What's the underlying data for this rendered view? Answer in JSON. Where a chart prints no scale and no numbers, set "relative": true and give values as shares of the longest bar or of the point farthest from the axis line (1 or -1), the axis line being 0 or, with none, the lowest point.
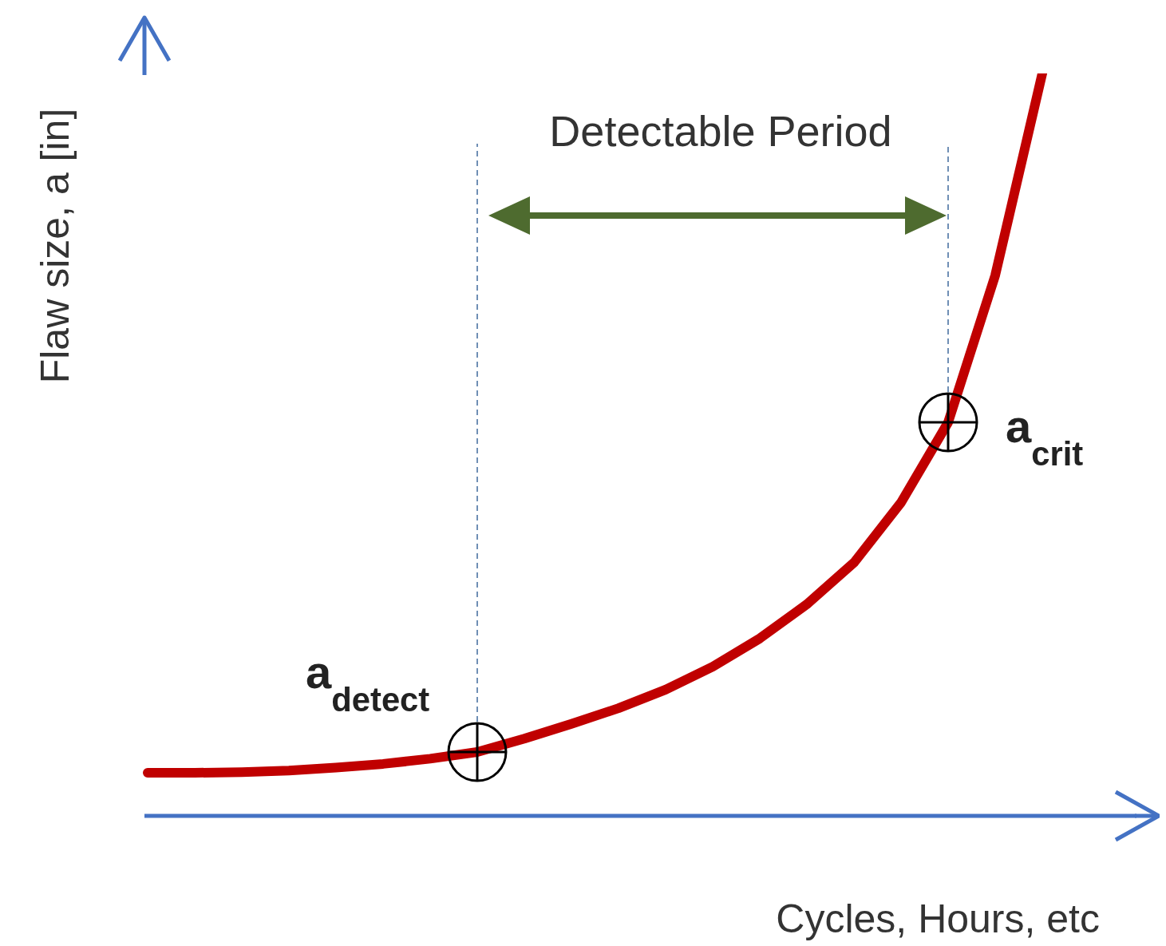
{
  "chart_data": {
    "type": "line",
    "relative": true,
    "xlabel": "Cycles, Hours, etc",
    "ylabel": "Flaw size, a [in]",
    "annotations": [
      "Detectable Period",
      "a$_{detect}$",
      "a$_{crit}$"
    ],
    "categories": [
      null,
      null,
      null,
      null,
      null,
      null,
      null,
      null,
      null,
      null,
      null,
      null,
      null,
      null,
      null,
      null,
      null,
      null,
      null,
      null,
      null,
      null
    ],
    "series": [
      {
        "color": "#c00000",
        "line_style": "solid",
        "values": [
          0.058,
          0.058,
          0.059,
          0.061,
          0.065,
          0.07,
          0.077,
          0.086,
          0.104,
          0.124,
          0.145,
          0.17,
          0.201,
          0.239,
          0.285,
          0.341,
          0.422,
          0.53,
          0.728,
          1.0,
          null,
          null
        ]
      }
    ]
  }
}
